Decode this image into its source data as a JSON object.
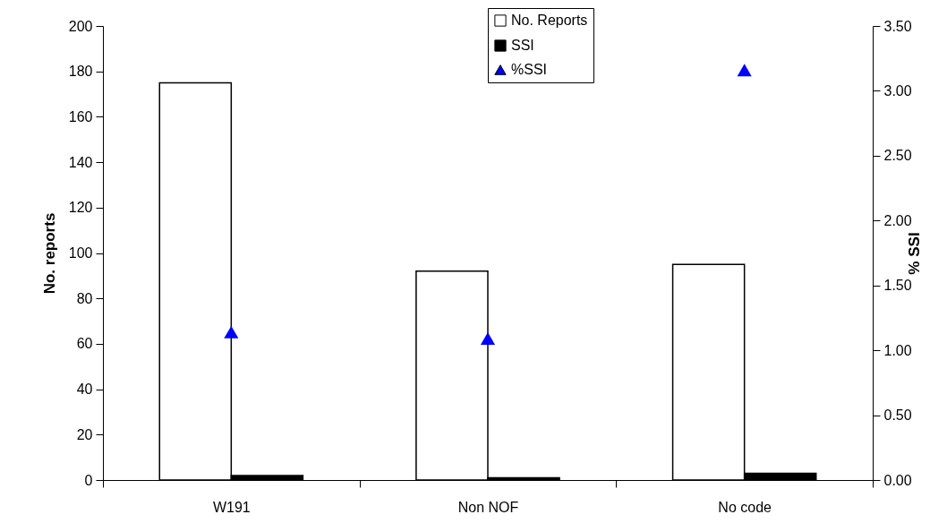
{
  "chart_data": {
    "type": "bar",
    "categories": [
      "W191",
      "Non NOF",
      "No code"
    ],
    "ylabel": "No. reports",
    "y2label": "% SSI",
    "series": [
      {
        "name": "No. Reports",
        "color": "#ffffff",
        "values": [
          175,
          92,
          95
        ]
      },
      {
        "name": "SSI",
        "color": "#000000",
        "values": [
          2,
          1,
          3
        ]
      },
      {
        "name": "%SSI",
        "type": "scatter",
        "axis": "y2",
        "marker": "triangle",
        "color": "#0000ff",
        "values": [
          1.14,
          1.09,
          3.16
        ]
      }
    ],
    "ylim": [
      0,
      200
    ],
    "yticks": [
      0,
      20,
      40,
      60,
      80,
      100,
      120,
      140,
      160,
      180,
      200
    ],
    "y2lim": [
      0,
      3.5
    ],
    "y2ticks": [
      {
        "value": 0,
        "label": "0.00"
      },
      {
        "value": 0.5,
        "label": "0.50"
      },
      {
        "value": 1,
        "label": "1.00"
      },
      {
        "value": 1.5,
        "label": "1.50"
      },
      {
        "value": 2,
        "label": "2.00"
      },
      {
        "value": 2.5,
        "label": "2.50"
      },
      {
        "value": 3,
        "label": "3.00"
      },
      {
        "value": 3.5,
        "label": "3.50"
      }
    ],
    "grid": false,
    "legend": "top"
  }
}
